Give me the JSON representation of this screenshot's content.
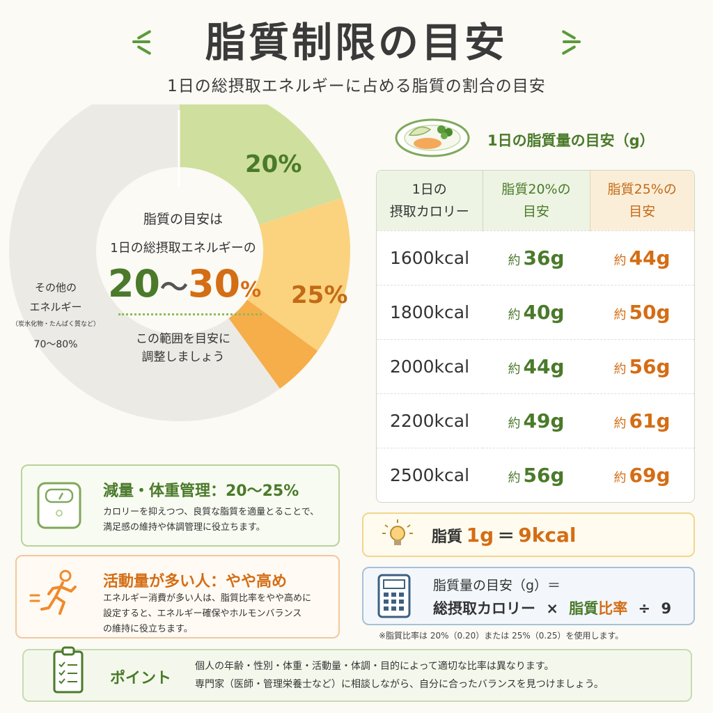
{
  "header": {
    "title": "脂質制限の目安",
    "subtitle": "1日の総摂取エネルギーに占める脂質の割合の目安"
  },
  "donut": {
    "center_line1": "脂質の目安は",
    "center_line2": "1日の総摂取エネルギーの",
    "range_low": "20",
    "range_sep": "〜",
    "range_high": "30",
    "range_unit": "%",
    "center_line3": "この範囲を目安に",
    "center_line4": "調整しましょう",
    "seg_20_label": "20%",
    "seg_25_label": "25%",
    "other_line1": "その他の",
    "other_line2": "エネルギー",
    "other_line3": "（炭水化物・たんぱく質など）",
    "other_line4": "70〜80%",
    "colors": {
      "green": "#cfdf9e",
      "yellow": "#fbd37f",
      "orange": "#f6ae4a",
      "gray": "#eceae5"
    }
  },
  "table": {
    "title": "1日の脂質量の目安（g）",
    "headers": [
      "1日の\n摂取カロリー",
      "脂質20%の\n目安",
      "脂質25%の\n目安"
    ],
    "prefix": "約",
    "unit": "g",
    "rows": [
      {
        "kcal": "1600kcal",
        "g20": "36",
        "g25": "44"
      },
      {
        "kcal": "1800kcal",
        "g20": "40",
        "g25": "50"
      },
      {
        "kcal": "2000kcal",
        "g20": "44",
        "g25": "56"
      },
      {
        "kcal": "2200kcal",
        "g20": "49",
        "g25": "61"
      },
      {
        "kcal": "2500kcal",
        "g20": "56",
        "g25": "69"
      }
    ]
  },
  "weight_box": {
    "title": "減量・体重管理：20〜25%",
    "desc1": "カロリーを抑えつつ、良質な脂質を適量とることで、",
    "desc2": "満足感の維持や体調管理に役立ちます。"
  },
  "active_box": {
    "title": "活動量が多い人：やや高め",
    "desc1": "エネルギー消費が多い人は、脂質比率をやや高めに",
    "desc2": "設定すると、エネルギー確保やホルモンバランス",
    "desc3": "の維持に役立ちます。"
  },
  "kcal_box": {
    "label": "脂質",
    "amount": "1g",
    "eq": "＝",
    "kcal": "9kcal"
  },
  "formula_box": {
    "line1": "脂質量の目安（g）＝",
    "line2_a": "総摂取カロリー",
    "line2_b": "×",
    "line2_c": "脂質",
    "line2_d": "比率",
    "line2_e": "÷",
    "line2_f": "9"
  },
  "note": "※脂質比率は 20%（0.20）または 25%（0.25）を使用します。",
  "point_box": {
    "title": "ポイント",
    "line1": "個人の年齢・性別・体重・活動量・体調・目的によって適切な比率は異なります。",
    "line2": "専門家（医師・管理栄養士など）に相談しながら、自分に合ったバランスを見つけましょう。"
  }
}
